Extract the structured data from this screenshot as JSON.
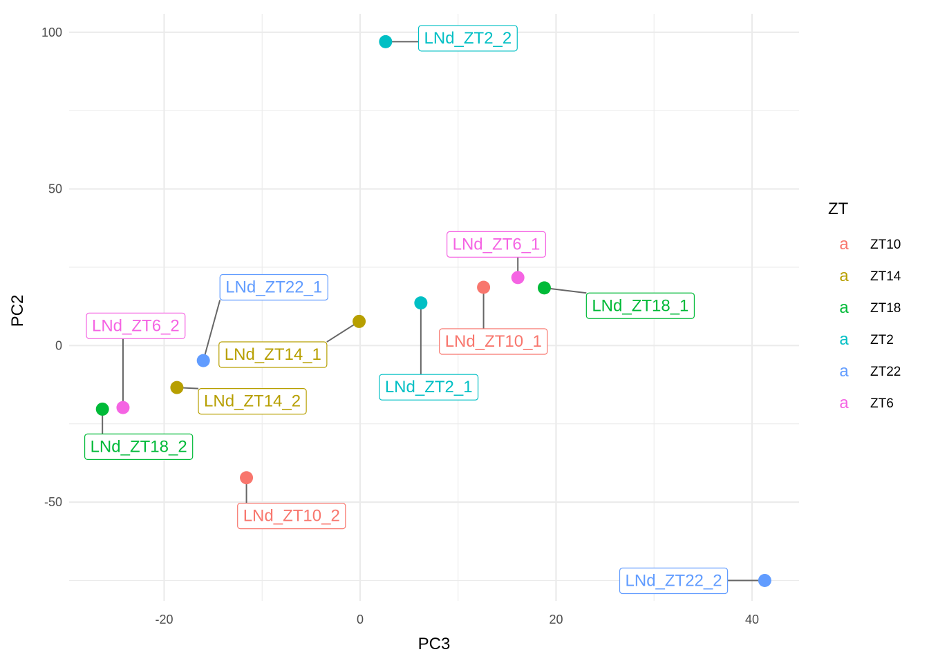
{
  "chart_data": {
    "type": "scatter",
    "xlabel": "PC3",
    "ylabel": "PC2",
    "xlim": [
      -29.7,
      44.8
    ],
    "ylim": [
      -81.5,
      105.9
    ],
    "x_ticks": [
      -20,
      0,
      20,
      40
    ],
    "y_ticks": [
      -50,
      0,
      50,
      100
    ],
    "x_tick_labels": [
      "-20",
      "0",
      "20",
      "40"
    ],
    "y_tick_labels": [
      "-50",
      "0",
      "50",
      "100"
    ],
    "grid": true,
    "legend": {
      "title": "ZT",
      "placement": "right",
      "key_glyph": "a",
      "entries": [
        {
          "name": "ZT10",
          "color": "#F8766D"
        },
        {
          "name": "ZT14",
          "color": "#B79F00"
        },
        {
          "name": "ZT18",
          "color": "#00BA38"
        },
        {
          "name": "ZT2",
          "color": "#00BFC4"
        },
        {
          "name": "ZT22",
          "color": "#619CFF"
        },
        {
          "name": "ZT6",
          "color": "#F564E3"
        }
      ]
    },
    "points": [
      {
        "label": "LNd_ZT2_2",
        "group": "ZT2",
        "x": 2.6,
        "y": 97.0,
        "label_x": 11.0,
        "label_y": 98.2
      },
      {
        "label": "LNd_ZT6_1",
        "group": "ZT6",
        "x": 16.1,
        "y": 21.7,
        "label_x": 13.9,
        "label_y": 32.4
      },
      {
        "label": "LNd_ZT10_1",
        "group": "ZT10",
        "x": 12.6,
        "y": 18.6,
        "label_x": 13.6,
        "label_y": 1.4
      },
      {
        "label": "LNd_ZT18_1",
        "group": "ZT18",
        "x": 18.8,
        "y": 18.4,
        "label_x": 28.6,
        "label_y": 12.8
      },
      {
        "label": "LNd_ZT2_1",
        "group": "ZT2",
        "x": 6.2,
        "y": 13.6,
        "label_x": 7.0,
        "label_y": -13.2
      },
      {
        "label": "LNd_ZT22_1",
        "group": "ZT22",
        "x": -16.0,
        "y": -4.8,
        "label_x": -8.8,
        "label_y": 18.7
      },
      {
        "label": "LNd_ZT14_1",
        "group": "ZT14",
        "x": -0.1,
        "y": 7.7,
        "label_x": -8.9,
        "label_y": -2.8
      },
      {
        "label": "LNd_ZT6_2",
        "group": "ZT6",
        "x": -24.2,
        "y": -19.8,
        "label_x": -22.9,
        "label_y": 6.4
      },
      {
        "label": "LNd_ZT14_2",
        "group": "ZT14",
        "x": -18.7,
        "y": -13.4,
        "label_x": -11.0,
        "label_y": -17.7
      },
      {
        "label": "LNd_ZT18_2",
        "group": "ZT18",
        "x": -26.3,
        "y": -20.3,
        "label_x": -22.6,
        "label_y": -32.2
      },
      {
        "label": "LNd_ZT10_2",
        "group": "ZT10",
        "x": -11.6,
        "y": -42.2,
        "label_x": -7.0,
        "label_y": -54.3
      },
      {
        "label": "LNd_ZT22_2",
        "group": "ZT22",
        "x": 41.3,
        "y": -75.0,
        "label_x": 32.0,
        "label_y": -75.0
      }
    ]
  }
}
